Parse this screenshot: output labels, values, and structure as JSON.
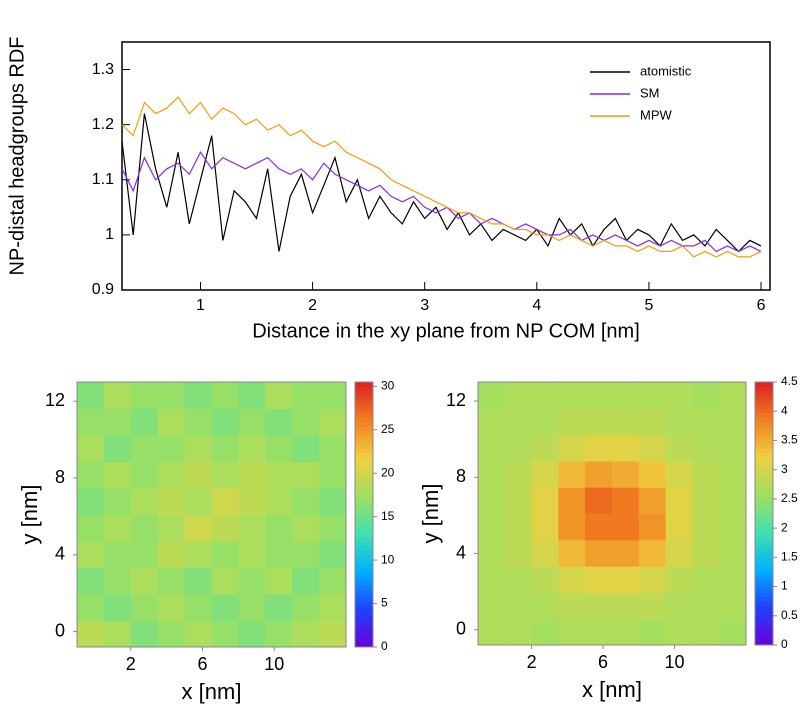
{
  "chart_data": [
    {
      "type": "line",
      "xlabel": "Distance in the xy plane from NP COM [nm]",
      "ylabel": "NP-distal headgroups RDF",
      "x": [
        0.3,
        0.4,
        0.5,
        0.6,
        0.7,
        0.8,
        0.9,
        1.0,
        1.1,
        1.2,
        1.3,
        1.4,
        1.5,
        1.6,
        1.7,
        1.8,
        1.9,
        2.0,
        2.1,
        2.2,
        2.3,
        2.4,
        2.5,
        2.6,
        2.7,
        2.8,
        2.9,
        3.0,
        3.1,
        3.2,
        3.3,
        3.4,
        3.5,
        3.6,
        3.7,
        3.8,
        3.9,
        4.0,
        4.1,
        4.2,
        4.3,
        4.4,
        4.5,
        4.6,
        4.7,
        4.8,
        4.9,
        5.0,
        5.1,
        5.2,
        5.3,
        5.4,
        5.5,
        5.6,
        5.7,
        5.8,
        5.9,
        6.0
      ],
      "series": [
        {
          "name": "atomistic",
          "color": "#000000",
          "values": [
            1.17,
            1.0,
            1.22,
            1.12,
            1.05,
            1.15,
            1.02,
            1.1,
            1.18,
            0.99,
            1.08,
            1.06,
            1.03,
            1.12,
            0.97,
            1.07,
            1.11,
            1.04,
            1.09,
            1.14,
            1.06,
            1.1,
            1.03,
            1.07,
            1.04,
            1.02,
            1.06,
            1.03,
            1.05,
            1.01,
            1.04,
            1.0,
            1.02,
            0.99,
            1.01,
            1.0,
            0.99,
            1.01,
            0.98,
            1.03,
            1.0,
            1.02,
            0.98,
            1.01,
            1.03,
            0.99,
            1.01,
            1.0,
            0.98,
            1.02,
            0.99,
            1.0,
            0.98,
            1.01,
            0.99,
            0.97,
            0.99,
            0.98
          ]
        },
        {
          "name": "SM",
          "color": "#8a2be2",
          "values": [
            1.12,
            1.08,
            1.14,
            1.1,
            1.12,
            1.13,
            1.11,
            1.15,
            1.12,
            1.14,
            1.13,
            1.12,
            1.13,
            1.14,
            1.12,
            1.11,
            1.12,
            1.1,
            1.13,
            1.11,
            1.1,
            1.09,
            1.08,
            1.09,
            1.07,
            1.06,
            1.07,
            1.05,
            1.04,
            1.05,
            1.03,
            1.04,
            1.02,
            1.03,
            1.02,
            1.01,
            1.02,
            1.01,
            1.0,
            1.0,
            1.01,
            0.99,
            1.0,
            0.99,
            1.0,
            0.99,
            0.98,
            0.99,
            0.98,
            0.99,
            0.98,
            0.98,
            0.99,
            0.97,
            0.98,
            0.97,
            0.98,
            0.97
          ]
        },
        {
          "name": "MPW",
          "color": "#f39c12",
          "values": [
            1.2,
            1.18,
            1.24,
            1.22,
            1.23,
            1.25,
            1.22,
            1.24,
            1.21,
            1.23,
            1.22,
            1.2,
            1.21,
            1.19,
            1.2,
            1.18,
            1.19,
            1.17,
            1.16,
            1.17,
            1.15,
            1.14,
            1.13,
            1.12,
            1.1,
            1.09,
            1.08,
            1.07,
            1.06,
            1.05,
            1.04,
            1.04,
            1.03,
            1.02,
            1.02,
            1.01,
            1.01,
            1.0,
            1.0,
            0.99,
            1.0,
            0.99,
            0.98,
            0.99,
            0.98,
            0.98,
            0.97,
            0.98,
            0.97,
            0.97,
            0.98,
            0.96,
            0.97,
            0.96,
            0.97,
            0.96,
            0.96,
            0.97
          ]
        }
      ],
      "xlim": [
        0.3,
        6.08
      ],
      "xticks": [
        1,
        2,
        3,
        4,
        5,
        6
      ],
      "ylim": [
        0.9,
        1.35
      ],
      "yticks": [
        0.9,
        1,
        1.1,
        1.2,
        1.3
      ],
      "legend": "upper right"
    },
    {
      "type": "heatmap",
      "xlabel": "x [nm]",
      "ylabel": "y [nm]",
      "xlim": [
        -1,
        14
      ],
      "xticks": [
        2,
        6,
        10
      ],
      "ylim": [
        -0.8,
        13
      ],
      "yticks": [
        0,
        4,
        8,
        12
      ],
      "zlim": [
        0,
        30.5
      ],
      "zticks": [
        0,
        5,
        10,
        15,
        20,
        25,
        30
      ],
      "colormap": [
        "#6a00d8",
        "#2040ff",
        "#00b0ff",
        "#40e0b0",
        "#a0e060",
        "#f0d040",
        "#f08020",
        "#e02020"
      ],
      "z": [
        [
          19,
          18,
          16,
          17,
          18,
          17,
          16,
          17,
          18,
          19
        ],
        [
          17,
          16,
          17,
          18,
          17,
          16,
          17,
          16,
          17,
          18
        ],
        [
          16,
          17,
          18,
          17,
          16,
          18,
          17,
          18,
          16,
          17
        ],
        [
          18,
          17,
          17,
          19,
          18,
          17,
          18,
          17,
          17,
          16
        ],
        [
          17,
          18,
          17,
          18,
          20,
          19,
          18,
          17,
          18,
          17
        ],
        [
          16,
          17,
          18,
          19,
          18,
          20,
          19,
          18,
          17,
          16
        ],
        [
          17,
          18,
          17,
          18,
          19,
          18,
          19,
          18,
          18,
          17
        ],
        [
          18,
          16,
          17,
          17,
          18,
          17,
          18,
          17,
          16,
          17
        ],
        [
          17,
          17,
          16,
          18,
          17,
          16,
          17,
          16,
          17,
          18
        ],
        [
          16,
          18,
          17,
          17,
          16,
          17,
          16,
          18,
          17,
          17
        ]
      ]
    },
    {
      "type": "heatmap",
      "xlabel": "x [nm]",
      "ylabel": "y [nm]",
      "xlim": [
        -1,
        14
      ],
      "xticks": [
        2,
        6,
        10
      ],
      "ylim": [
        -0.8,
        13
      ],
      "yticks": [
        0,
        4,
        8,
        12
      ],
      "zlim": [
        0,
        4.5
      ],
      "zticks": [
        0,
        0.5,
        1,
        1.5,
        2,
        2.5,
        3,
        3.5,
        4,
        4.5
      ],
      "colormap": [
        "#6a00d8",
        "#2040ff",
        "#00b0ff",
        "#40e0b0",
        "#a0e060",
        "#f0d040",
        "#f08020",
        "#e02020"
      ],
      "z": [
        [
          2.7,
          2.7,
          2.6,
          2.7,
          2.7,
          2.7,
          2.6,
          2.7,
          2.7,
          2.6
        ],
        [
          2.7,
          2.7,
          2.7,
          2.8,
          2.8,
          2.8,
          2.8,
          2.7,
          2.7,
          2.7
        ],
        [
          2.7,
          2.7,
          2.8,
          3.0,
          3.1,
          3.1,
          3.0,
          2.8,
          2.7,
          2.7
        ],
        [
          2.7,
          2.8,
          3.0,
          3.4,
          3.6,
          3.6,
          3.4,
          3.0,
          2.8,
          2.7
        ],
        [
          2.7,
          2.8,
          3.1,
          3.7,
          3.9,
          3.9,
          3.7,
          3.1,
          2.8,
          2.7
        ],
        [
          2.7,
          2.8,
          3.1,
          3.7,
          4.0,
          3.9,
          3.6,
          3.1,
          2.8,
          2.7
        ],
        [
          2.7,
          2.8,
          3.0,
          3.4,
          3.6,
          3.5,
          3.3,
          3.0,
          2.8,
          2.7
        ],
        [
          2.7,
          2.7,
          2.8,
          3.0,
          3.1,
          3.1,
          3.0,
          2.8,
          2.7,
          2.7
        ],
        [
          2.7,
          2.7,
          2.7,
          2.8,
          2.8,
          2.8,
          2.8,
          2.7,
          2.7,
          2.7
        ],
        [
          2.6,
          2.7,
          2.7,
          2.7,
          2.7,
          2.7,
          2.7,
          2.7,
          2.6,
          2.7
        ]
      ]
    }
  ]
}
